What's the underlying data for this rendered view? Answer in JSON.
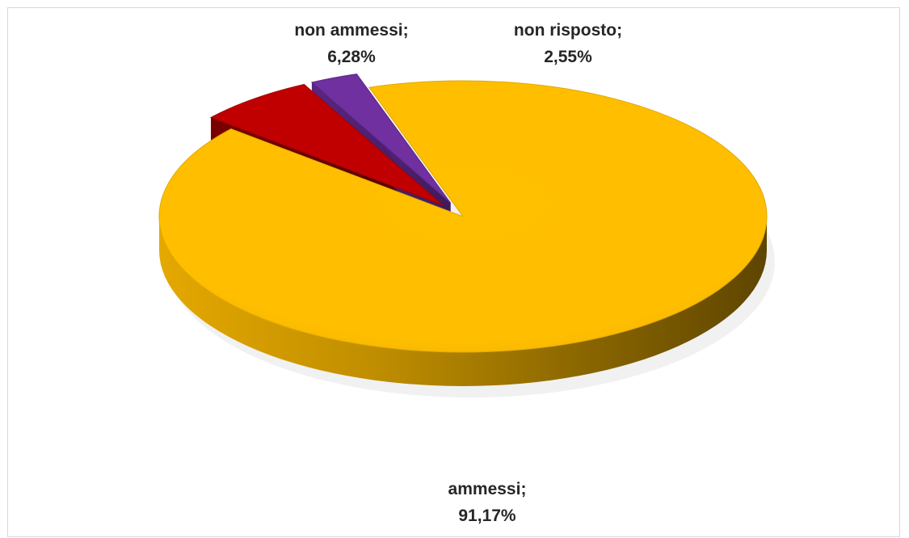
{
  "chart_data": {
    "type": "pie",
    "title": "",
    "style": "3d-exploded",
    "categories": [
      "ammessi",
      "non ammessi",
      "non risposto"
    ],
    "values": [
      91.17,
      6.28,
      2.55
    ],
    "unit": "%",
    "colors": {
      "ammessi": "#FFC000",
      "non ammessi": "#C00000",
      "non risposto": "#7030A0"
    },
    "labels": [
      {
        "category": "ammessi",
        "name_text": "ammessi;",
        "value_text": "91,17%"
      },
      {
        "category": "non ammessi",
        "name_text": "non ammessi;",
        "value_text": "6,28%"
      },
      {
        "category": "non risposto",
        "name_text": "non risposto;",
        "value_text": "2,55%"
      }
    ],
    "legend": "none"
  }
}
